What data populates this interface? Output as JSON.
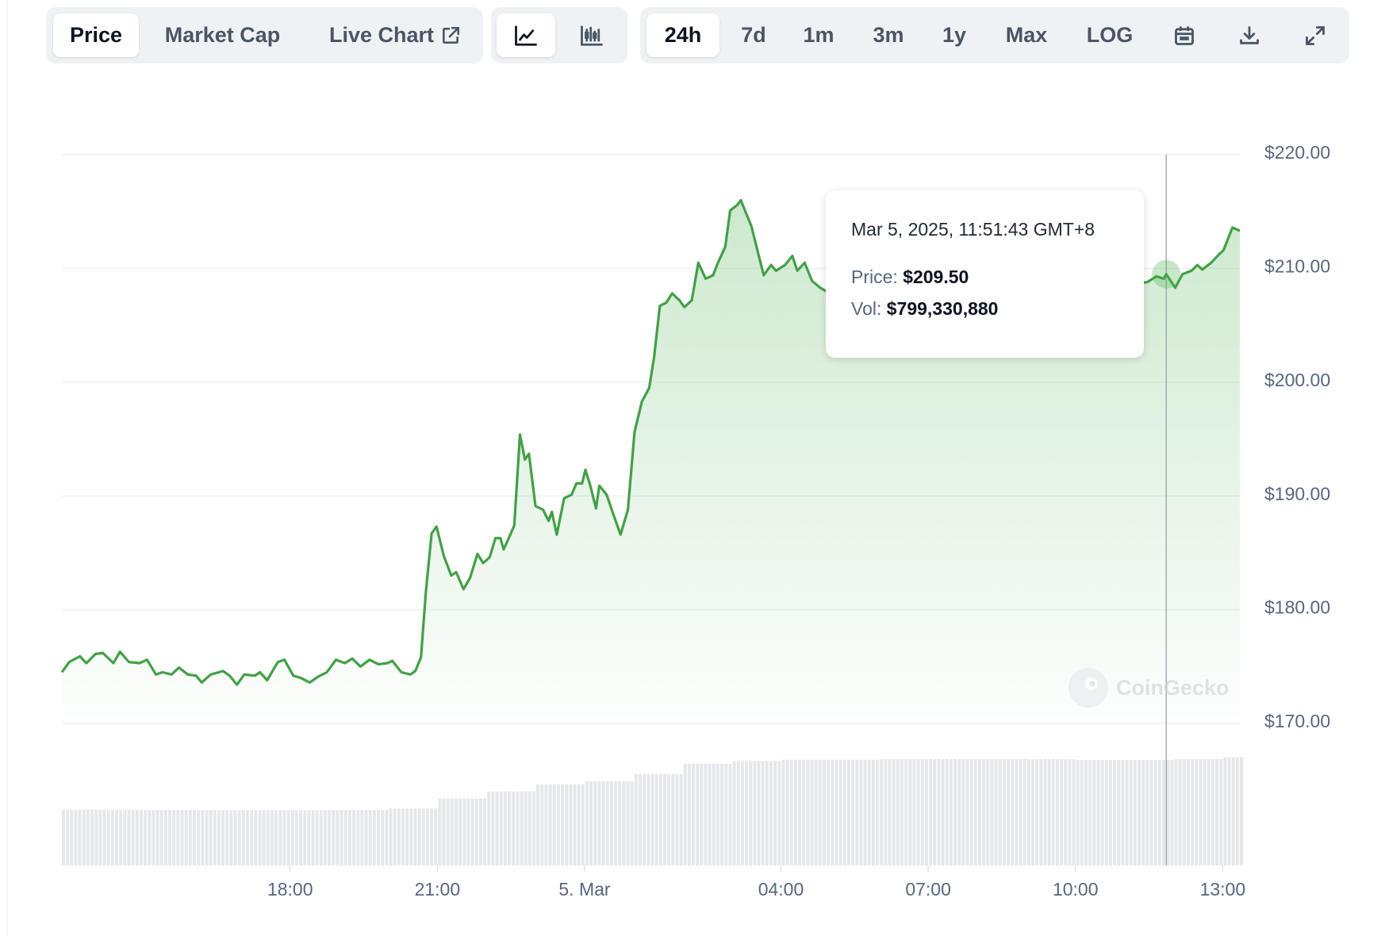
{
  "toolbar": {
    "data_tabs": [
      {
        "label": "Price",
        "active": true
      },
      {
        "label": "Market Cap",
        "active": false
      },
      {
        "label": "Live Chart",
        "active": false,
        "icon": "external-link-icon"
      }
    ],
    "chart_types": [
      {
        "icon": "line-chart-icon",
        "active": true
      },
      {
        "icon": "candlestick-chart-icon",
        "active": false
      }
    ],
    "ranges": [
      {
        "label": "24h",
        "active": true
      },
      {
        "label": "7d"
      },
      {
        "label": "1m"
      },
      {
        "label": "3m"
      },
      {
        "label": "1y"
      },
      {
        "label": "Max"
      },
      {
        "label": "LOG"
      }
    ],
    "actions": [
      {
        "icon": "calendar-icon"
      },
      {
        "icon": "download-icon"
      },
      {
        "icon": "expand-icon"
      }
    ]
  },
  "tooltip": {
    "date": "Mar 5, 2025, 11:51:43 GMT+8",
    "price_label": "Price:",
    "price": "$209.50",
    "vol_label": "Vol:",
    "vol": "$799,330,880"
  },
  "watermark": "CoinGecko",
  "colors": {
    "line": "#4caf50",
    "fill": "#4caf50",
    "volume": "#e5e7eb",
    "grid": "#eff2f5",
    "axis_text": "#58667e"
  },
  "chart_data": {
    "type": "area",
    "ylim": [
      170,
      220
    ],
    "y_ticks": [
      "$220.00",
      "$210.00",
      "$200.00",
      "$190.00",
      "$180.00",
      "$170.00"
    ],
    "y_tick_values": [
      220,
      210,
      200,
      190,
      180,
      170
    ],
    "x_ticks": [
      {
        "label": "18:00",
        "t": "03-04 18:00"
      },
      {
        "label": "21:00",
        "t": "03-04 21:00"
      },
      {
        "label": "5. Mar",
        "t": "03-05 00:00"
      },
      {
        "label": "04:00",
        "t": "03-05 04:00"
      },
      {
        "label": "07:00",
        "t": "03-05 07:00"
      },
      {
        "label": "10:00",
        "t": "03-05 10:00"
      },
      {
        "label": "13:00",
        "t": "03-05 13:00"
      }
    ],
    "x_range": [
      "03-04 13:21",
      "03-05 13:21"
    ],
    "grid": true,
    "price": [
      [
        "03-04 13:21",
        174.5
      ],
      [
        "03-04 13:30",
        175.4
      ],
      [
        "03-04 13:43",
        175.9
      ],
      [
        "03-04 13:51",
        175.3
      ],
      [
        "03-04 14:02",
        176.1
      ],
      [
        "03-04 14:11",
        176.2
      ],
      [
        "03-04 14:24",
        175.3
      ],
      [
        "03-04 14:32",
        176.3
      ],
      [
        "03-04 14:43",
        175.4
      ],
      [
        "03-04 14:56",
        175.3
      ],
      [
        "03-04 15:05",
        175.6
      ],
      [
        "03-04 15:16",
        174.3
      ],
      [
        "03-04 15:24",
        174.5
      ],
      [
        "03-04 15:35",
        174.3
      ],
      [
        "03-04 15:44",
        174.9
      ],
      [
        "03-04 15:55",
        174.3
      ],
      [
        "03-04 16:05",
        174.2
      ],
      [
        "03-04 16:12",
        173.6
      ],
      [
        "03-04 16:23",
        174.3
      ],
      [
        "03-04 16:38",
        174.6
      ],
      [
        "03-04 16:46",
        174.2
      ],
      [
        "03-04 16:55",
        173.4
      ],
      [
        "03-04 17:04",
        174.3
      ],
      [
        "03-04 17:17",
        174.2
      ],
      [
        "03-04 17:23",
        174.5
      ],
      [
        "03-04 17:32",
        173.8
      ],
      [
        "03-04 17:45",
        175.4
      ],
      [
        "03-04 17:53",
        175.6
      ],
      [
        "03-04 18:04",
        174.2
      ],
      [
        "03-04 18:13",
        174.0
      ],
      [
        "03-04 18:24",
        173.6
      ],
      [
        "03-04 18:34",
        174.1
      ],
      [
        "03-04 18:45",
        174.5
      ],
      [
        "03-04 18:56",
        175.6
      ],
      [
        "03-04 19:07",
        175.3
      ],
      [
        "03-04 19:16",
        175.7
      ],
      [
        "03-04 19:26",
        175.0
      ],
      [
        "03-04 19:37",
        175.6
      ],
      [
        "03-04 19:48",
        175.2
      ],
      [
        "03-04 19:59",
        175.3
      ],
      [
        "03-04 20:05",
        175.5
      ],
      [
        "03-04 20:16",
        174.5
      ],
      [
        "03-04 20:27",
        174.3
      ],
      [
        "03-04 20:33",
        174.6
      ],
      [
        "03-04 20:40",
        175.8
      ],
      [
        "03-04 20:46",
        181.6
      ],
      [
        "03-04 20:53",
        186.7
      ],
      [
        "03-04 20:59",
        187.3
      ],
      [
        "03-04 21:08",
        184.7
      ],
      [
        "03-04 21:17",
        183.0
      ],
      [
        "03-04 21:23",
        183.3
      ],
      [
        "03-04 21:32",
        181.8
      ],
      [
        "03-04 21:40",
        182.8
      ],
      [
        "03-04 21:49",
        184.9
      ],
      [
        "03-04 21:56",
        184.1
      ],
      [
        "03-04 22:04",
        184.6
      ],
      [
        "03-04 22:11",
        186.3
      ],
      [
        "03-04 22:17",
        186.3
      ],
      [
        "03-04 22:21",
        185.3
      ],
      [
        "03-04 22:28",
        186.4
      ],
      [
        "03-04 22:34",
        187.4
      ],
      [
        "03-04 22:41",
        195.4
      ],
      [
        "03-04 22:47",
        193.2
      ],
      [
        "03-04 22:52",
        193.7
      ],
      [
        "03-04 23:00",
        189.1
      ],
      [
        "03-04 23:09",
        188.8
      ],
      [
        "03-04 23:16",
        187.8
      ],
      [
        "03-04 23:20",
        188.6
      ],
      [
        "03-04 23:26",
        186.6
      ],
      [
        "03-04 23:35",
        189.8
      ],
      [
        "03-04 23:44",
        190.1
      ],
      [
        "03-04 23:50",
        191.1
      ],
      [
        "03-04 23:57",
        191.1
      ],
      [
        "03-05 00:01",
        192.3
      ],
      [
        "03-05 00:07",
        190.9
      ],
      [
        "03-05 00:14",
        188.9
      ],
      [
        "03-05 00:18",
        190.9
      ],
      [
        "03-05 00:27",
        190.1
      ],
      [
        "03-05 00:35",
        188.4
      ],
      [
        "03-05 00:44",
        186.6
      ],
      [
        "03-05 00:53",
        188.8
      ],
      [
        "03-05 01:01",
        195.6
      ],
      [
        "03-05 01:10",
        198.3
      ],
      [
        "03-05 01:19",
        199.5
      ],
      [
        "03-05 01:25",
        202.2
      ],
      [
        "03-05 01:32",
        206.7
      ],
      [
        "03-05 01:40",
        207.0
      ],
      [
        "03-05 01:47",
        207.8
      ],
      [
        "03-05 01:56",
        207.2
      ],
      [
        "03-05 02:02",
        206.6
      ],
      [
        "03-05 02:11",
        207.2
      ],
      [
        "03-05 02:19",
        210.5
      ],
      [
        "03-05 02:28",
        209.1
      ],
      [
        "03-05 02:37",
        209.4
      ],
      [
        "03-05 02:43",
        210.5
      ],
      [
        "03-05 02:52",
        211.9
      ],
      [
        "03-05 02:58",
        215.1
      ],
      [
        "03-05 03:07",
        215.6
      ],
      [
        "03-05 03:11",
        216.0
      ],
      [
        "03-05 03:24",
        213.7
      ],
      [
        "03-05 03:33",
        211.1
      ],
      [
        "03-05 03:39",
        209.4
      ],
      [
        "03-05 03:48",
        210.3
      ],
      [
        "03-05 03:54",
        209.8
      ],
      [
        "03-05 04:05",
        210.3
      ],
      [
        "03-05 04:14",
        211.1
      ],
      [
        "03-05 04:20",
        209.8
      ],
      [
        "03-05 04:29",
        210.5
      ],
      [
        "03-05 04:38",
        208.9
      ],
      [
        "03-05 04:48",
        208.3
      ],
      [
        "03-05 05:00",
        207.8
      ],
      [
        "03-05 05:30",
        208.5
      ],
      [
        "03-05 06:00",
        207.5
      ],
      [
        "03-05 06:30",
        208.2
      ],
      [
        "03-05 07:00",
        208.0
      ],
      [
        "03-05 07:30",
        207.3
      ],
      [
        "03-05 08:00",
        208.6
      ],
      [
        "03-05 08:30",
        208.1
      ],
      [
        "03-05 09:00",
        207.6
      ],
      [
        "03-05 09:30",
        208.4
      ],
      [
        "03-05 10:00",
        208.2
      ],
      [
        "03-05 10:30",
        208.9
      ],
      [
        "03-05 11:00",
        208.5
      ],
      [
        "03-05 11:28",
        208.8
      ],
      [
        "03-05 11:39",
        209.3
      ],
      [
        "03-05 11:48",
        209.1
      ],
      [
        "03-05 11:51",
        209.5
      ],
      [
        "03-05 12:02",
        208.3
      ],
      [
        "03-05 12:11",
        209.5
      ],
      [
        "03-05 12:22",
        209.8
      ],
      [
        "03-05 12:29",
        210.3
      ],
      [
        "03-05 12:35",
        209.9
      ],
      [
        "03-05 12:46",
        210.5
      ],
      [
        "03-05 12:55",
        211.2
      ],
      [
        "03-05 13:01",
        211.6
      ],
      [
        "03-05 13:12",
        213.6
      ],
      [
        "03-05 13:21",
        213.3
      ]
    ],
    "volume_hourly_musd": [
      [
        "03-04 13:00",
        422
      ],
      [
        "03-04 14:00",
        422
      ],
      [
        "03-04 15:00",
        420
      ],
      [
        "03-04 16:00",
        418
      ],
      [
        "03-04 17:00",
        418
      ],
      [
        "03-04 18:00",
        418
      ],
      [
        "03-04 19:00",
        420
      ],
      [
        "03-04 20:00",
        430
      ],
      [
        "03-04 21:00",
        505
      ],
      [
        "03-04 22:00",
        560
      ],
      [
        "03-04 23:00",
        615
      ],
      [
        "03-05 00:00",
        635
      ],
      [
        "03-05 01:00",
        690
      ],
      [
        "03-05 02:00",
        770
      ],
      [
        "03-05 03:00",
        790
      ],
      [
        "03-05 04:00",
        800
      ],
      [
        "03-05 05:00",
        800
      ],
      [
        "03-05 06:00",
        805
      ],
      [
        "03-05 07:00",
        805
      ],
      [
        "03-05 08:00",
        805
      ],
      [
        "03-05 09:00",
        803
      ],
      [
        "03-05 10:00",
        798
      ],
      [
        "03-05 11:00",
        799
      ],
      [
        "03-05 12:00",
        805
      ],
      [
        "03-05 13:00",
        818
      ]
    ],
    "hover": {
      "t": "03-05 11:51",
      "price": 209.5
    }
  }
}
